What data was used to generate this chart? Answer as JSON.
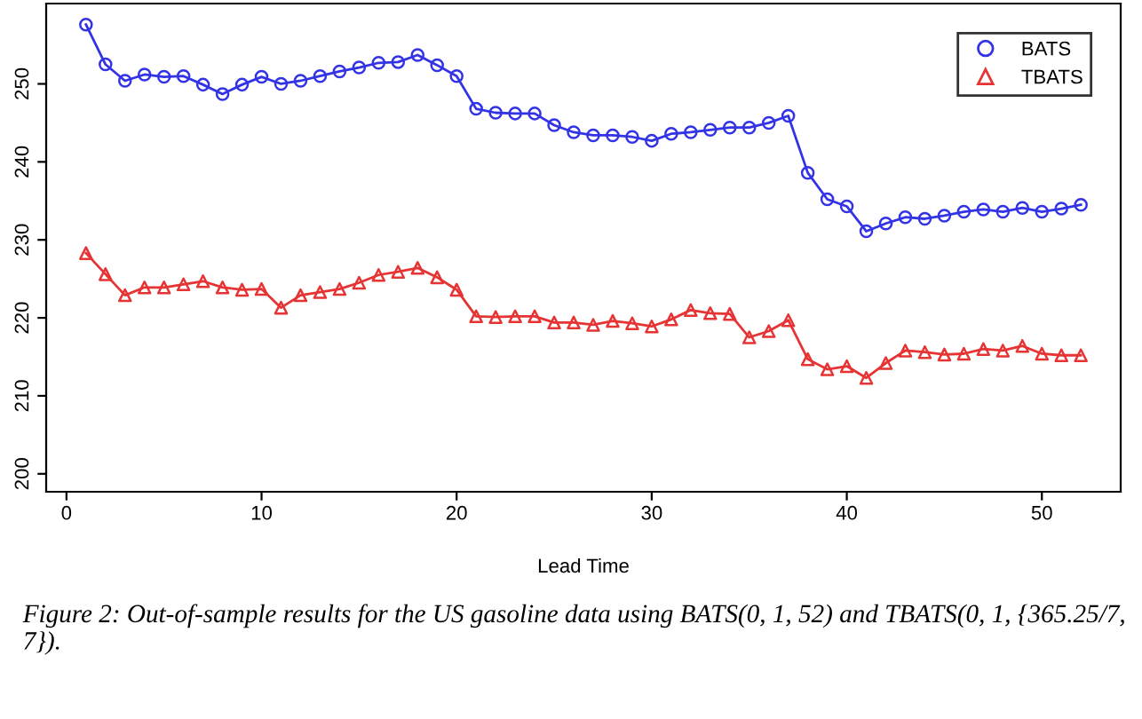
{
  "chart_data": {
    "type": "line",
    "xlabel": "Lead Time",
    "x": [
      1,
      2,
      3,
      4,
      5,
      6,
      7,
      8,
      9,
      10,
      11,
      12,
      13,
      14,
      15,
      16,
      17,
      18,
      19,
      20,
      21,
      22,
      23,
      24,
      25,
      26,
      27,
      28,
      29,
      30,
      31,
      32,
      33,
      34,
      35,
      36,
      37,
      38,
      39,
      40,
      41,
      42,
      43,
      44,
      45,
      46,
      47,
      48,
      49,
      50,
      51,
      52
    ],
    "series": [
      {
        "name": "BATS",
        "color": "#3333e6",
        "marker": "circle",
        "values": [
          257.6,
          252.5,
          250.4,
          251.2,
          250.9,
          251.0,
          249.9,
          248.7,
          249.9,
          250.9,
          250.0,
          250.4,
          251.0,
          251.6,
          252.1,
          252.7,
          252.8,
          253.7,
          252.4,
          251.0,
          246.8,
          246.3,
          246.2,
          246.2,
          244.7,
          243.8,
          243.4,
          243.4,
          243.2,
          242.7,
          243.6,
          243.8,
          244.1,
          244.4,
          244.4,
          245.0,
          245.9,
          238.6,
          235.2,
          234.3,
          231.1,
          232.1,
          232.9,
          232.7,
          233.1,
          233.6,
          233.9,
          233.6,
          234.1,
          233.6,
          234.0,
          234.5
        ]
      },
      {
        "name": "TBATS",
        "color": "#e63333",
        "marker": "triangle",
        "values": [
          228.3,
          225.6,
          222.9,
          223.9,
          223.9,
          224.3,
          224.7,
          223.9,
          223.6,
          223.7,
          221.3,
          222.9,
          223.3,
          223.7,
          224.5,
          225.5,
          225.9,
          226.4,
          225.2,
          223.6,
          220.2,
          220.1,
          220.2,
          220.2,
          219.4,
          219.4,
          219.1,
          219.6,
          219.3,
          218.9,
          219.8,
          221.0,
          220.6,
          220.5,
          217.5,
          218.3,
          219.7,
          214.7,
          213.4,
          213.8,
          212.3,
          214.2,
          215.8,
          215.6,
          215.3,
          215.4,
          216.0,
          215.8,
          216.4,
          215.4,
          215.2,
          215.2
        ]
      }
    ],
    "xlim": [
      -1.04,
      54.04
    ],
    "ylim": [
      197.7,
      260.3
    ],
    "xticks": [
      0,
      10,
      20,
      30,
      40,
      50
    ],
    "yticks": [
      200,
      210,
      220,
      230,
      240,
      250
    ],
    "grid": false,
    "legend": "top right",
    "line_style": "solid",
    "annotations": [
      "Figure 2: Out-of-sample results for the US gasoline data using BATS(0, 1, 52) and TBATS(0, 1, {365.25/7, 7})."
    ]
  }
}
